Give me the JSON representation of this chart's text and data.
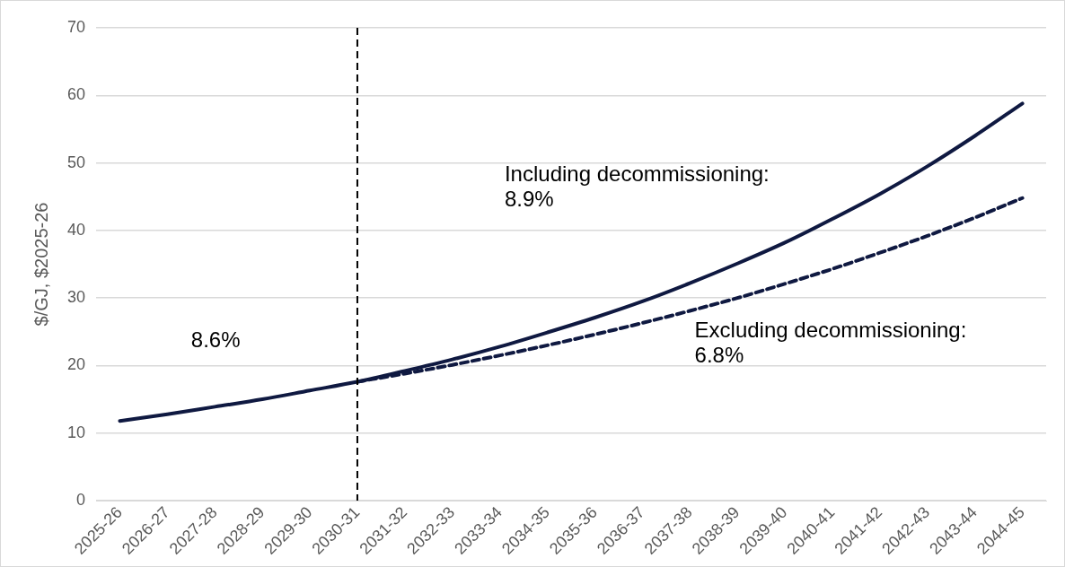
{
  "chart_data": {
    "type": "line",
    "ylabel": "$/GJ, $2025-26",
    "categories": [
      "2025-26",
      "2026-27",
      "2027-28",
      "2028-29",
      "2029-30",
      "2030-31",
      "2031-32",
      "2032-33",
      "2033-34",
      "2034-35",
      "2035-36",
      "2036-37",
      "2037-38",
      "2038-39",
      "2039-40",
      "2040-41",
      "2041-42",
      "2042-43",
      "2043-44",
      "2044-45"
    ],
    "series": [
      {
        "color": "#0f1941",
        "line_style": "dashed",
        "values": [
          null,
          null,
          null,
          null,
          null,
          17.6,
          18.8,
          20.1,
          21.5,
          23.0,
          24.6,
          26.3,
          28.1,
          30.0,
          32.1,
          34.3,
          36.7,
          39.2,
          41.9,
          44.8
        ]
      },
      {
        "color": "#0f1941",
        "line_style": "solid",
        "values": [
          11.8,
          12.8,
          13.9,
          15.0,
          16.3,
          17.6,
          19.2,
          20.9,
          22.8,
          24.9,
          27.1,
          29.5,
          32.2,
          35.1,
          38.2,
          41.7,
          45.4,
          49.5,
          54.0,
          58.8
        ]
      }
    ],
    "ylim": [
      0,
      70
    ],
    "yticks": [
      0,
      10,
      20,
      30,
      40,
      50,
      60,
      70
    ],
    "grid": "y",
    "legend": false,
    "marker": "none",
    "ref_lines": [
      {
        "axis": "x",
        "value": "2030-31",
        "color": "#000000",
        "line_style": "dashed"
      }
    ],
    "annotations": [
      "8.6%",
      "Including decommissioning:\n8.9%",
      "Excluding decommissioning:\n6.8%"
    ]
  }
}
